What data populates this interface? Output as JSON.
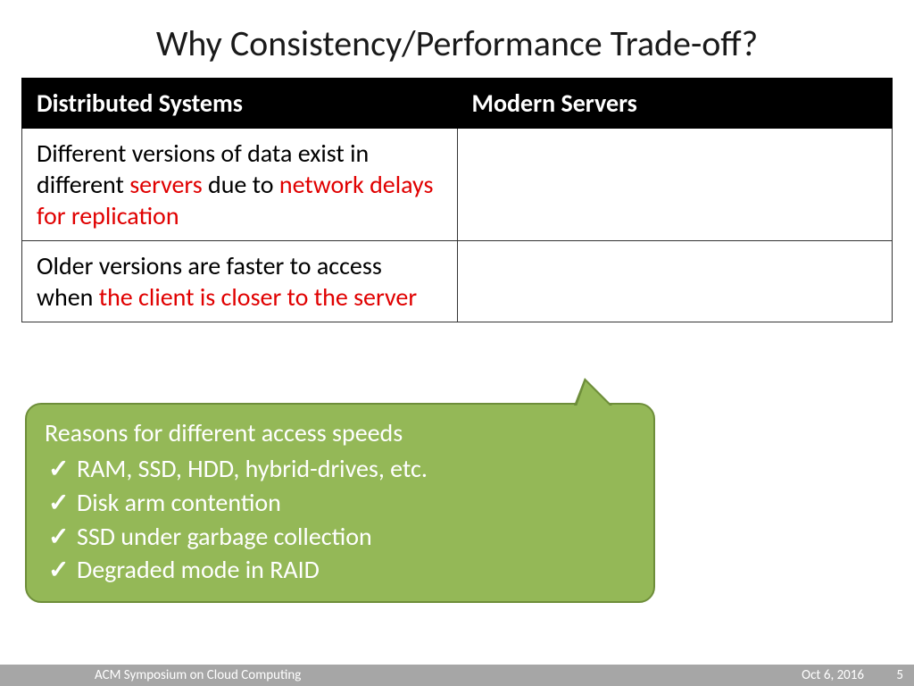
{
  "title": "Why Consistency/Performance Trade-off?",
  "table": {
    "headers": {
      "left": "Distributed Systems",
      "right": "Modern Servers"
    },
    "row1": {
      "left_pre": "Different versions of data exist in different ",
      "left_hl1": "servers",
      "left_mid": " due to ",
      "left_hl2": "network delays for replication",
      "right": ""
    },
    "row2": {
      "left_pre": "Older versions are faster to access when ",
      "left_hl1": "the client is closer to the server",
      "right": ""
    }
  },
  "callout": {
    "title": "Reasons for different access speeds",
    "items": [
      "RAM, SSD, HDD, hybrid-drives, etc.",
      "Disk arm contention",
      "SSD under garbage collection",
      "Degraded mode in RAID"
    ]
  },
  "footer": {
    "venue": "ACM Symposium on Cloud Computing",
    "date": "Oct 6, 2016",
    "page": "5"
  },
  "colors": {
    "highlight": "#e00000",
    "callout_bg": "#94b857",
    "callout_border": "#6e8e3a",
    "footer_bg": "#a6a6a6"
  }
}
